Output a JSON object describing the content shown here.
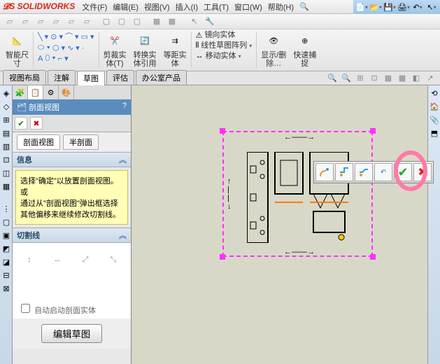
{
  "app": {
    "name": "SOLIDWORKS"
  },
  "menubar": {
    "items": [
      "文件(F)",
      "编辑(E)",
      "视图(V)",
      "插入(I)",
      "工具(T)",
      "窗口(W)",
      "帮助(H)"
    ]
  },
  "qat_icons": [
    "new",
    "open",
    "save",
    "print",
    "undo",
    "select"
  ],
  "ribbon": {
    "smartDim": "智能尺\n寸",
    "trim": "剪裁实\n体(T)",
    "convert": "转换实\n体引用",
    "offset": "等距实\n体",
    "mirror": "镜向实体",
    "linearPattern": "线性草图阵列",
    "move": "移动实体",
    "showHide": "显示/删\n除…",
    "quickSnap": "快速捕\n捉"
  },
  "tabs": [
    "视图布局",
    "注解",
    "草图",
    "评估",
    "办公室产品"
  ],
  "activeTab": 2,
  "panel": {
    "title": "剖面视图",
    "help": "?",
    "subtabs": [
      "剖面视图",
      "半剖面"
    ],
    "activeSubtab": 0,
    "info": {
      "head": "信息",
      "line1": "选择\"确定\"以放置剖面视图。",
      "or": "或",
      "line2": "通过从\"剖面视图\"弹出框选择其他偏移来继续修改切割线。"
    },
    "cutline": {
      "head": "切割线",
      "autoStart": "自动启动剖面实体"
    },
    "editSketch": "编辑草图"
  },
  "floatToolbar": {
    "buttons": [
      "offset-a",
      "offset-b",
      "offset-c",
      "undo",
      "ok",
      "cancel"
    ]
  },
  "colors": {
    "highlight": "#ff7aa8",
    "selectionBox": "#ff30ff",
    "canvas": "#d8d8c8",
    "infobox": "#ffffb8"
  }
}
